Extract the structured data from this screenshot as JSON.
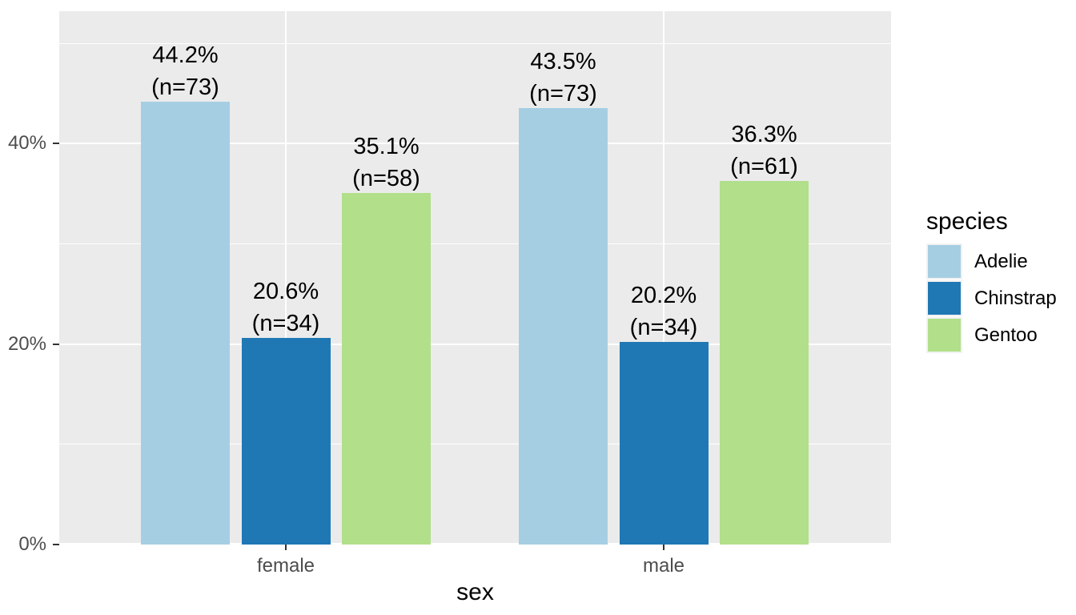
{
  "chart_data": {
    "type": "bar",
    "title": "",
    "xlabel": "sex",
    "ylabel": "",
    "categories": [
      "female",
      "male"
    ],
    "series": [
      {
        "name": "Adelie",
        "color": "#A6CEE3",
        "values": [
          44.2,
          43.5
        ],
        "counts": [
          73,
          73
        ]
      },
      {
        "name": "Chinstrap",
        "color": "#1F78B4",
        "values": [
          20.6,
          20.2
        ],
        "counts": [
          34,
          34
        ]
      },
      {
        "name": "Gentoo",
        "color": "#B2DF8A",
        "values": [
          35.1,
          36.3
        ],
        "counts": [
          58,
          61
        ]
      }
    ],
    "bar_labels": [
      [
        [
          "44.2%",
          "(n=73)"
        ],
        [
          "43.5%",
          "(n=73)"
        ]
      ],
      [
        [
          "20.6%",
          "(n=34)"
        ],
        [
          "20.2%",
          "(n=34)"
        ]
      ],
      [
        [
          "35.1%",
          "(n=58)"
        ],
        [
          "36.3%",
          "(n=61)"
        ]
      ]
    ],
    "y_axis": {
      "tick_labels": [
        "0%",
        "20%",
        "40%"
      ],
      "tick_values": [
        0,
        20,
        40
      ],
      "minor_gridlines": [
        10,
        30,
        50
      ],
      "ylim": [
        0,
        53.2
      ]
    },
    "legend_position": "right",
    "grid": true,
    "colors": {
      "panel_bg": "#EBEBEB",
      "gridline": "#FFFFFF",
      "tick_text": "#4D4D4D",
      "title_text": "#000000",
      "tick_mark": "#333333",
      "legend_key_bg": "#F2F2F2"
    }
  },
  "legend": {
    "title": "species",
    "items": [
      {
        "label": "Adelie",
        "color": "#A6CEE3"
      },
      {
        "label": "Chinstrap",
        "color": "#1F78B4"
      },
      {
        "label": "Gentoo",
        "color": "#B2DF8A"
      }
    ]
  }
}
